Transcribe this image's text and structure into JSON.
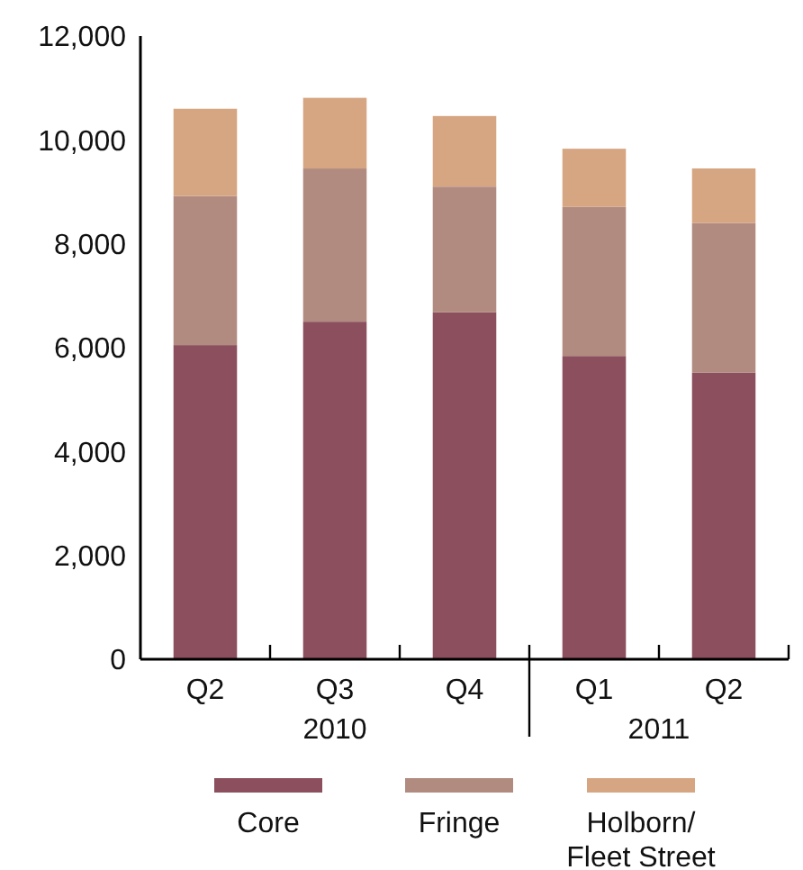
{
  "chart_data": {
    "type": "bar",
    "stacked": true,
    "categories": [
      "Q2",
      "Q3",
      "Q4",
      "Q1",
      "Q2"
    ],
    "series": [
      {
        "name": "Core",
        "color": "#8b4f5e",
        "values": [
          6050,
          6500,
          6680,
          5840,
          5520
        ]
      },
      {
        "name": "Fringe",
        "color": "#b28b80",
        "values": [
          2870,
          2950,
          2420,
          2870,
          2880
        ]
      },
      {
        "name": "Holborn/ Fleet Street",
        "color": "#d6a582",
        "values": [
          1680,
          1360,
          1360,
          1120,
          1050
        ]
      }
    ],
    "ylim": [
      0,
      12000
    ],
    "yticks": [
      {
        "value": 0,
        "label": "0"
      },
      {
        "value": 2000,
        "label": "2,000"
      },
      {
        "value": 4000,
        "label": "4,000"
      },
      {
        "value": 6000,
        "label": "6,000"
      },
      {
        "value": 8000,
        "label": "8,000"
      },
      {
        "value": 10000,
        "label": "10,000"
      },
      {
        "value": 12000,
        "label": "12,000"
      }
    ],
    "annotations": [
      "2010",
      "2011"
    ],
    "legend": "bottom",
    "grid": false
  }
}
